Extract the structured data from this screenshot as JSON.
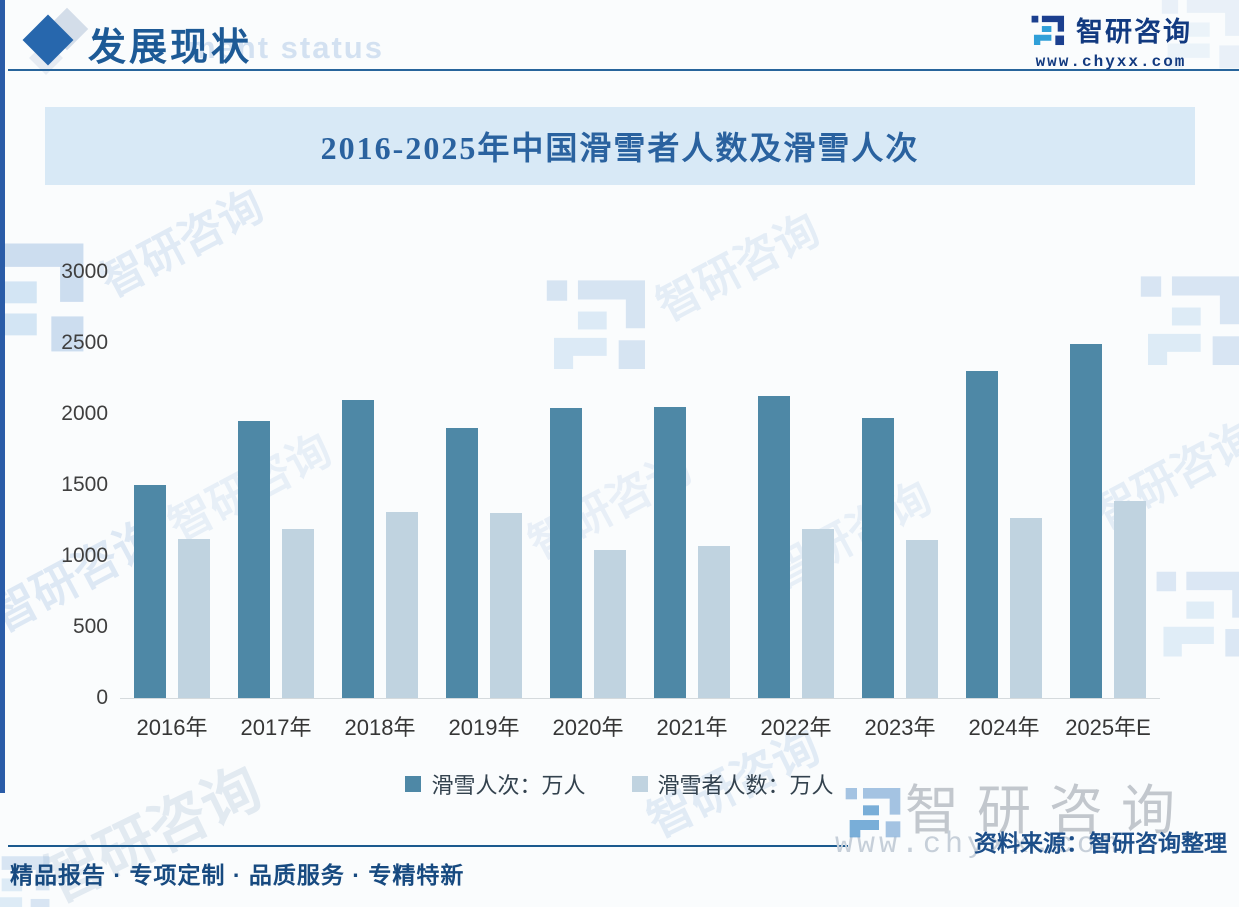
{
  "header": {
    "title": "发展现状",
    "title_watermark": "ment status",
    "brand_name": "智研咨询",
    "brand_url": "www.chyxx.com"
  },
  "chart_data": {
    "type": "bar",
    "title": "2016-2025年中国滑雪者人数及滑雪人次",
    "categories": [
      "2016年",
      "2017年",
      "2018年",
      "2019年",
      "2020年",
      "2021年",
      "2022年",
      "2023年",
      "2024年",
      "2025年E"
    ],
    "series": [
      {
        "name": "滑雪人次：万人",
        "color": "#4e88a6",
        "values": [
          1500,
          1950,
          2100,
          1900,
          2040,
          2050,
          2130,
          1970,
          2300,
          2490
        ]
      },
      {
        "name": "滑雪者人数：万人",
        "color": "#c0d3e0",
        "values": [
          1120,
          1190,
          1310,
          1300,
          1040,
          1070,
          1190,
          1110,
          1270,
          1390
        ]
      }
    ],
    "xlabel": "",
    "ylabel": "",
    "ylim": [
      0,
      3000
    ],
    "ytick_labels": [
      "3000",
      "2500",
      "2000",
      "1500",
      "1000",
      "500",
      "0"
    ],
    "grid": false,
    "legend_position": "bottom"
  },
  "footer": {
    "tagline": "精品报告 · 专项定制 · 品质服务 · 专精特新",
    "source": "资料来源：智研咨询整理",
    "brand_name": "智研咨询",
    "brand_url": "www.chyxx.com"
  },
  "watermark": {
    "text": "智研咨询"
  },
  "colors": {
    "accent_blue": "#1d5a96",
    "title_bar_bg": "#d8e9f6",
    "series_dark": "#4e88a6",
    "series_light": "#c0d3e0"
  }
}
